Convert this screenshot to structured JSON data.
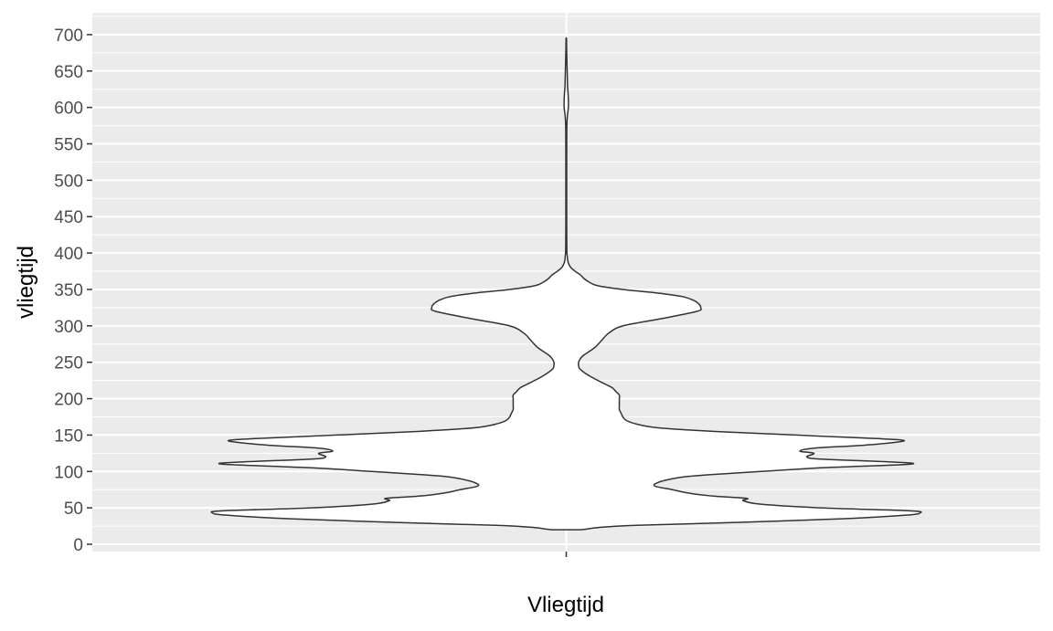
{
  "chart_data": {
    "type": "violin",
    "title": "",
    "xlabel": "Vliegtijd",
    "ylabel": "vliegtijd",
    "categories": [
      ""
    ],
    "ylim": [
      -10,
      730
    ],
    "yticks": [
      0,
      50,
      100,
      150,
      200,
      250,
      300,
      350,
      400,
      450,
      500,
      550,
      600,
      650,
      700
    ],
    "ytick_labels": [
      "0",
      "50",
      "100",
      "150",
      "200",
      "250",
      "300",
      "350",
      "400",
      "450",
      "500",
      "550",
      "600",
      "650",
      "700"
    ],
    "grid": true,
    "legend": "none",
    "colors": {
      "panel_background": "#ebebeb",
      "grid": "#ffffff",
      "violin_fill": "#ffffff",
      "violin_outline": "#333333",
      "tick_label": "#4d4d4d",
      "axis_title": "#000000"
    },
    "density_profile": {
      "description_units": "y in vliegtijd units, half_width as fraction of maximum violin half-width",
      "y": [
        20,
        21,
        23,
        26,
        30,
        35,
        40,
        43,
        46,
        50,
        55,
        60,
        63,
        66,
        70,
        75,
        80,
        85,
        90,
        93,
        96,
        100,
        105,
        110,
        113,
        117,
        120,
        125,
        128,
        132,
        136,
        140,
        143,
        146,
        150,
        155,
        160,
        165,
        170,
        175,
        180,
        185,
        190,
        195,
        200,
        205,
        210,
        215,
        220,
        230,
        240,
        245,
        250,
        255,
        260,
        270,
        280,
        290,
        300,
        310,
        320,
        325,
        330,
        335,
        340,
        345,
        350,
        355,
        360,
        365,
        370,
        375,
        380,
        385,
        390,
        395,
        400,
        410,
        450,
        500,
        550,
        570,
        580,
        590,
        600,
        610,
        620,
        630,
        640,
        650,
        660,
        670,
        680,
        690,
        695
      ],
      "half_width": [
        0.04,
        0.06,
        0.09,
        0.2,
        0.48,
        0.78,
        0.96,
        1.0,
        0.97,
        0.72,
        0.55,
        0.5,
        0.51,
        0.42,
        0.35,
        0.3,
        0.25,
        0.26,
        0.3,
        0.34,
        0.42,
        0.55,
        0.72,
        0.97,
        0.92,
        0.72,
        0.68,
        0.7,
        0.66,
        0.7,
        0.84,
        0.93,
        0.95,
        0.84,
        0.65,
        0.42,
        0.26,
        0.2,
        0.17,
        0.16,
        0.155,
        0.15,
        0.15,
        0.15,
        0.15,
        0.15,
        0.14,
        0.13,
        0.11,
        0.07,
        0.04,
        0.035,
        0.035,
        0.04,
        0.05,
        0.08,
        0.1,
        0.12,
        0.16,
        0.27,
        0.37,
        0.38,
        0.375,
        0.36,
        0.33,
        0.26,
        0.16,
        0.09,
        0.065,
        0.05,
        0.04,
        0.025,
        0.013,
        0.007,
        0.004,
        0.003,
        0.002,
        0.0015,
        0.0012,
        0.0012,
        0.0013,
        0.0015,
        0.002,
        0.0035,
        0.006,
        0.006,
        0.005,
        0.0035,
        0.003,
        0.0025,
        0.002,
        0.0015,
        0.001,
        0.0008,
        0.0005
      ]
    }
  }
}
